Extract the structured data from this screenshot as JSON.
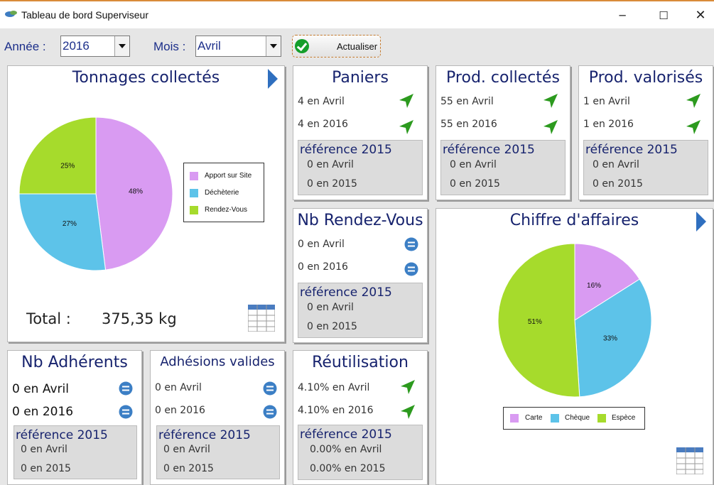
{
  "window": {
    "title": "Tableau de bord Superviseur"
  },
  "toolbar": {
    "year_label": "Année :",
    "year_value": "2016",
    "month_label": "Mois :",
    "month_value": "Avril",
    "refresh_label": "Actualiser"
  },
  "tonnages": {
    "title": "Tonnages collectés",
    "total_label": "Total :",
    "total_value": "375,35 kg",
    "chart_data": {
      "type": "pie",
      "categories": [
        "Apport sur Site",
        "Déchèterie",
        "Rendez-Vous"
      ],
      "values": [
        48,
        27,
        25
      ],
      "labels": [
        "48%",
        "27%",
        "25%"
      ],
      "colors": [
        "#d99bf2",
        "#5dc3e9",
        "#a6db2c"
      ],
      "legend": "right"
    }
  },
  "paniers": {
    "title": "Paniers",
    "line1": "4 en Avril",
    "line2": "4 en 2016",
    "ref_title": "référence 2015",
    "ref1": "0 en Avril",
    "ref2": "0 en 2015"
  },
  "prod_collectes": {
    "title": "Prod. collectés",
    "line1": "55 en Avril",
    "line2": "55 en 2016",
    "ref_title": "référence 2015",
    "ref1": "0 en Avril",
    "ref2": "0 en 2015"
  },
  "prod_valorises": {
    "title": "Prod. valorisés",
    "line1": "1 en Avril",
    "line2": "1 en 2016",
    "ref_title": "référence 2015",
    "ref1": "0 en Avril",
    "ref2": "0 en 2015"
  },
  "rendez_vous": {
    "title": "Nb Rendez-Vous",
    "line1": "0 en Avril",
    "line2": "0 en 2016",
    "ref_title": "référence 2015",
    "ref1": "0 en Avril",
    "ref2": "0 en 2015"
  },
  "chiffre": {
    "title": "Chiffre d'affaires",
    "chart_data": {
      "type": "pie",
      "categories": [
        "Carte",
        "Chèque",
        "Espèce"
      ],
      "values": [
        16,
        33,
        51
      ],
      "labels": [
        "16%",
        "33%",
        "51%"
      ],
      "colors": [
        "#d99bf2",
        "#5dc3e9",
        "#a6db2c"
      ],
      "legend": "bottom"
    }
  },
  "adherents": {
    "title": "Nb Adhérents",
    "line1": "0 en Avril",
    "line2": "0 en 2016",
    "ref_title": "référence 2015",
    "ref1": "0 en Avril",
    "ref2": "0 en 2015"
  },
  "adhesions": {
    "title": "Adhésions valides",
    "line1": "0 en Avril",
    "line2": "0 en 2016",
    "ref_title": "référence 2015",
    "ref1": "0 en Avril",
    "ref2": "0 en 2015"
  },
  "reutilisation": {
    "title": "Réutilisation",
    "line1": "4.10% en Avril",
    "line2": "4.10% en 2016",
    "ref_title": "référence 2015",
    "ref1": "0.00% en Avril",
    "ref2": "0.00% en 2015"
  },
  "icons": {
    "up": "green-arrow-icon",
    "equal": "equal-icon",
    "grid": "table-icon",
    "nav": "next-arrow-icon"
  }
}
